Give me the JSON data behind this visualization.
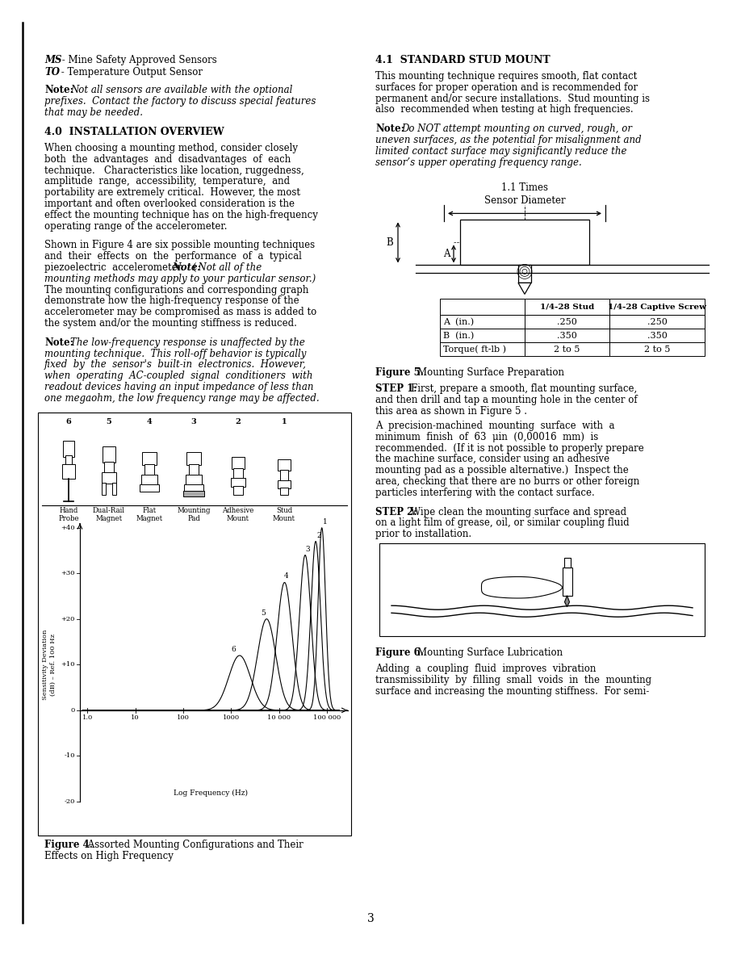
{
  "bg_color": "#ffffff",
  "page_number": "3",
  "left_col": {
    "ms_line": "MS - Mine Safety Approved Sensors",
    "to_line": "TO - Temperature Output Sensor"
  },
  "right_col": {
    "section41": "4.1  STANDARD STUD MOUNT"
  },
  "table_headers": [
    "",
    "1/4-28 Stud",
    "1/4-28 Captive Screw"
  ],
  "table_rows": [
    [
      "A  (in.)",
      ".250",
      ".250"
    ],
    [
      "B  (in.)",
      ".350",
      ".350"
    ],
    [
      "Torque( ft-lb )",
      "2 to 5",
      "2 to 5"
    ]
  ]
}
